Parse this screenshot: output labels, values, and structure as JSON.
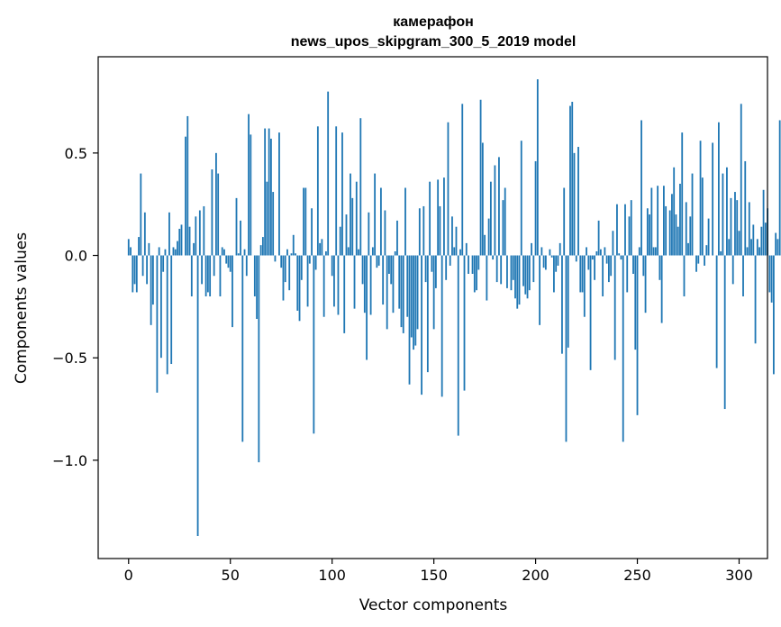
{
  "chart_data": {
    "type": "bar",
    "title": "камерафон",
    "subtitle": "news_upos_skipgram_300_5_2019 model",
    "xlabel": "Vector components",
    "ylabel": "Components values",
    "xlim": [
      -14.95,
      313.95
    ],
    "ylim": [
      -1.48,
      0.97
    ],
    "x_ticks": [
      0,
      50,
      100,
      150,
      200,
      250,
      300
    ],
    "x_tick_labels": [
      "0",
      "50",
      "100",
      "150",
      "200",
      "250",
      "300"
    ],
    "y_ticks": [
      0.5,
      0.0,
      -0.5,
      -1.0
    ],
    "y_tick_labels": [
      "0.5",
      "0.0",
      "−0.5",
      "−1.0"
    ],
    "grid": false,
    "bar_color": "#1f77b4",
    "values": [
      0.08,
      0.04,
      -0.18,
      -0.14,
      -0.18,
      0.09,
      0.4,
      -0.1,
      0.21,
      -0.14,
      0.06,
      -0.34,
      -0.24,
      0.0,
      -0.67,
      0.04,
      -0.5,
      -0.08,
      0.03,
      -0.58,
      0.21,
      -0.53,
      0.04,
      0.03,
      0.07,
      0.13,
      0.15,
      0.0,
      0.58,
      0.68,
      0.14,
      -0.2,
      0.06,
      0.19,
      -1.37,
      0.22,
      -0.14,
      0.24,
      -0.2,
      -0.18,
      -0.2,
      0.42,
      -0.1,
      0.5,
      0.4,
      -0.2,
      0.04,
      0.03,
      -0.04,
      -0.06,
      -0.08,
      -0.35,
      0.0,
      0.28,
      0.01,
      0.17,
      -0.91,
      0.03,
      -0.1,
      0.69,
      0.59,
      0.0,
      -0.2,
      -0.31,
      -1.01,
      0.05,
      0.09,
      0.62,
      0.36,
      0.62,
      0.57,
      0.31,
      -0.03,
      0.0,
      0.6,
      -0.06,
      -0.22,
      -0.13,
      0.03,
      -0.17,
      0.01,
      0.1,
      0.01,
      -0.27,
      -0.32,
      -0.12,
      0.33,
      0.33,
      -0.25,
      -0.04,
      0.23,
      -0.87,
      -0.07,
      0.63,
      0.06,
      0.08,
      -0.3,
      0.02,
      0.8,
      0.0,
      -0.1,
      -0.25,
      0.63,
      -0.29,
      0.14,
      0.6,
      -0.38,
      0.2,
      0.04,
      0.4,
      0.28,
      -0.26,
      0.36,
      0.03,
      0.67,
      -0.14,
      -0.28,
      -0.51,
      0.21,
      -0.29,
      0.04,
      0.4,
      -0.06,
      -0.05,
      0.33,
      -0.24,
      0.22,
      -0.36,
      -0.09,
      -0.14,
      -0.28,
      0.02,
      0.17,
      -0.26,
      -0.35,
      -0.38,
      0.33,
      -0.3,
      -0.63,
      -0.4,
      -0.46,
      -0.44,
      -0.36,
      0.23,
      -0.68,
      0.24,
      -0.13,
      -0.57,
      0.36,
      -0.08,
      -0.36,
      -0.16,
      0.37,
      0.24,
      -0.69,
      0.38,
      -0.12,
      0.65,
      -0.05,
      0.19,
      0.04,
      0.14,
      -0.88,
      0.03,
      0.74,
      -0.66,
      0.06,
      -0.09,
      0.0,
      -0.09,
      -0.18,
      -0.17,
      -0.07,
      0.76,
      0.55,
      0.1,
      -0.22,
      0.18,
      0.36,
      -0.02,
      0.44,
      -0.13,
      0.48,
      -0.14,
      0.27,
      0.33,
      -0.16,
      0.0,
      -0.17,
      -0.12,
      -0.21,
      -0.26,
      -0.24,
      0.56,
      -0.15,
      -0.19,
      -0.21,
      -0.17,
      0.06,
      -0.13,
      0.46,
      0.86,
      -0.34,
      0.04,
      -0.06,
      -0.07,
      0.0,
      0.03,
      -0.01,
      -0.18,
      -0.08,
      -0.05,
      0.06,
      -0.48,
      0.33,
      -0.91,
      -0.45,
      0.73,
      0.75,
      0.5,
      -0.03,
      0.53,
      -0.18,
      -0.18,
      -0.3,
      0.04,
      -0.07,
      -0.56,
      -0.02,
      -0.12,
      0.02,
      0.17,
      0.03,
      -0.2,
      0.04,
      -0.04,
      -0.13,
      -0.1,
      0.12,
      -0.51,
      0.25,
      0.01,
      -0.02,
      -0.91,
      0.25,
      -0.18,
      0.19,
      0.27,
      -0.09,
      -0.46,
      -0.78,
      0.04,
      0.66,
      -0.1,
      -0.28,
      0.23,
      0.2,
      0.33,
      0.04,
      0.04,
      0.34,
      -0.12,
      -0.33,
      0.34,
      0.24,
      0.0,
      0.22,
      0.3,
      0.43,
      0.2,
      0.14,
      0.35,
      0.6,
      -0.2,
      0.26,
      0.06,
      0.19,
      0.4,
      0.0,
      -0.08,
      -0.04,
      0.56,
      0.38,
      -0.05,
      0.05,
      0.18,
      0.0,
      0.55,
      0.0,
      -0.55,
      0.65,
      0.02,
      0.4,
      -0.75,
      0.43,
      0.08,
      0.28,
      -0.14,
      0.31,
      0.27,
      0.12,
      0.74,
      -0.2,
      0.46,
      0.04,
      0.26,
      0.08,
      0.15,
      -0.43,
      0.08,
      0.04,
      0.14,
      0.32,
      0.16,
      0.23,
      -0.18,
      -0.23,
      -0.58,
      0.11,
      0.08,
      0.66,
      0.04,
      0.0
    ]
  }
}
